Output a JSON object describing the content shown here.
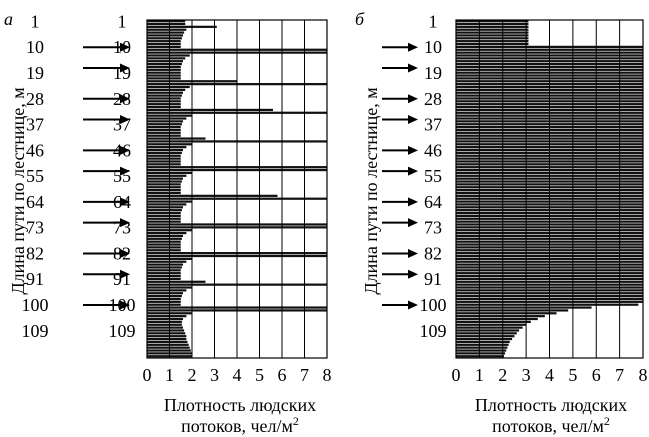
{
  "figure": {
    "panels": [
      {
        "letter": "а",
        "ylabel": "Длина пути по лестнице, м",
        "xlabel_line1": "Плотность людских",
        "xlabel_line2": "потоков, чел/м",
        "xlabel_superscript": "2"
      },
      {
        "letter": "б",
        "ylabel": "Длина пути по лестнице, м",
        "xlabel_line1": "Плотность людских",
        "xlabel_line2": "потоков, чел/м",
        "xlabel_superscript": "2"
      }
    ]
  },
  "chart_data": [
    {
      "type": "bar",
      "orientation": "horizontal",
      "panel": "а",
      "bar_color": "#111111",
      "grid": true,
      "x_ticks": [
        "0",
        "1",
        "2",
        "3",
        "4",
        "5",
        "6",
        "7",
        "8"
      ],
      "xlim": [
        0,
        8
      ],
      "y_ticks_outer": [
        "1",
        "10",
        "19",
        "28",
        "37",
        "46",
        "55",
        "64",
        "73",
        "82",
        "91",
        "100",
        "109"
      ],
      "y_ticks_inner": [
        "1",
        "10",
        "19",
        "28",
        "37",
        "46",
        "55",
        "64",
        "73",
        "82",
        "91",
        "100",
        "109"
      ],
      "arrows_at": [
        10,
        19,
        28,
        37,
        46,
        55,
        64,
        73,
        82,
        91,
        100
      ],
      "y_range": [
        1,
        118
      ],
      "values": [
        1.7,
        1.7,
        3.1,
        1.75,
        1.65,
        1.6,
        1.55,
        1.5,
        1.5,
        1.5,
        8.0,
        8.0,
        1.9,
        1.7,
        1.6,
        1.55,
        1.5,
        1.5,
        1.5,
        1.5,
        1.5,
        4.0,
        8.0,
        1.9,
        1.7,
        1.6,
        1.55,
        1.5,
        1.5,
        1.5,
        1.5,
        5.6,
        8.0,
        2.0,
        1.75,
        1.6,
        1.55,
        1.5,
        1.5,
        1.5,
        1.5,
        2.6,
        8.0,
        2.0,
        1.75,
        1.6,
        1.55,
        1.5,
        1.5,
        1.5,
        1.5,
        8.0,
        8.0,
        2.0,
        1.75,
        1.6,
        1.55,
        1.5,
        1.5,
        1.5,
        1.5,
        5.8,
        8.0,
        2.0,
        1.75,
        1.6,
        1.55,
        1.5,
        1.5,
        1.5,
        1.5,
        8.0,
        8.0,
        2.0,
        1.75,
        1.6,
        1.55,
        1.5,
        1.5,
        1.5,
        1.5,
        8.0,
        8.0,
        2.0,
        1.75,
        1.6,
        1.55,
        1.5,
        1.5,
        1.5,
        1.5,
        2.6,
        8.0,
        2.0,
        1.75,
        1.6,
        1.55,
        1.5,
        1.5,
        1.5,
        8.0,
        8.0,
        2.0,
        1.75,
        1.6,
        1.55,
        1.55,
        1.6,
        1.65,
        1.7,
        1.75,
        1.75,
        1.8,
        1.85,
        1.9,
        1.95,
        2.0,
        2.0
      ]
    },
    {
      "type": "bar",
      "orientation": "horizontal",
      "panel": "б",
      "bar_color": "#111111",
      "grid": true,
      "x_ticks": [
        "0",
        "1",
        "2",
        "3",
        "4",
        "5",
        "6",
        "7",
        "8"
      ],
      "xlim": [
        0,
        8
      ],
      "y_ticks": [
        "1",
        "10",
        "19",
        "28",
        "37",
        "46",
        "55",
        "64",
        "73",
        "82",
        "91",
        "100",
        "109"
      ],
      "arrows_at": [
        10,
        19,
        28,
        37,
        46,
        55,
        64,
        73,
        82,
        91,
        100
      ],
      "y_range": [
        1,
        118
      ],
      "values": [
        3.1,
        3.1,
        3.1,
        3.1,
        3.1,
        3.1,
        3.1,
        3.1,
        3.1,
        8.0,
        8.0,
        8.0,
        8.0,
        8.0,
        8.0,
        8.0,
        8.0,
        8.0,
        8.0,
        8.0,
        8.0,
        8.0,
        8.0,
        8.0,
        8.0,
        8.0,
        8.0,
        8.0,
        8.0,
        8.0,
        8.0,
        8.0,
        8.0,
        8.0,
        8.0,
        8.0,
        8.0,
        8.0,
        8.0,
        8.0,
        8.0,
        8.0,
        8.0,
        8.0,
        8.0,
        8.0,
        8.0,
        8.0,
        8.0,
        8.0,
        8.0,
        8.0,
        8.0,
        8.0,
        8.0,
        8.0,
        8.0,
        8.0,
        8.0,
        8.0,
        8.0,
        8.0,
        8.0,
        8.0,
        8.0,
        8.0,
        8.0,
        8.0,
        8.0,
        8.0,
        8.0,
        8.0,
        8.0,
        8.0,
        8.0,
        8.0,
        8.0,
        8.0,
        8.0,
        8.0,
        8.0,
        8.0,
        8.0,
        8.0,
        8.0,
        8.0,
        8.0,
        8.0,
        8.0,
        8.0,
        8.0,
        8.0,
        8.0,
        8.0,
        8.0,
        8.0,
        8.0,
        8.0,
        8.0,
        7.8,
        5.8,
        4.8,
        4.3,
        3.8,
        3.5,
        3.2,
        3.0,
        2.85,
        2.7,
        2.6,
        2.5,
        2.4,
        2.3,
        2.25,
        2.2,
        2.15,
        2.1,
        2.05
      ]
    }
  ]
}
